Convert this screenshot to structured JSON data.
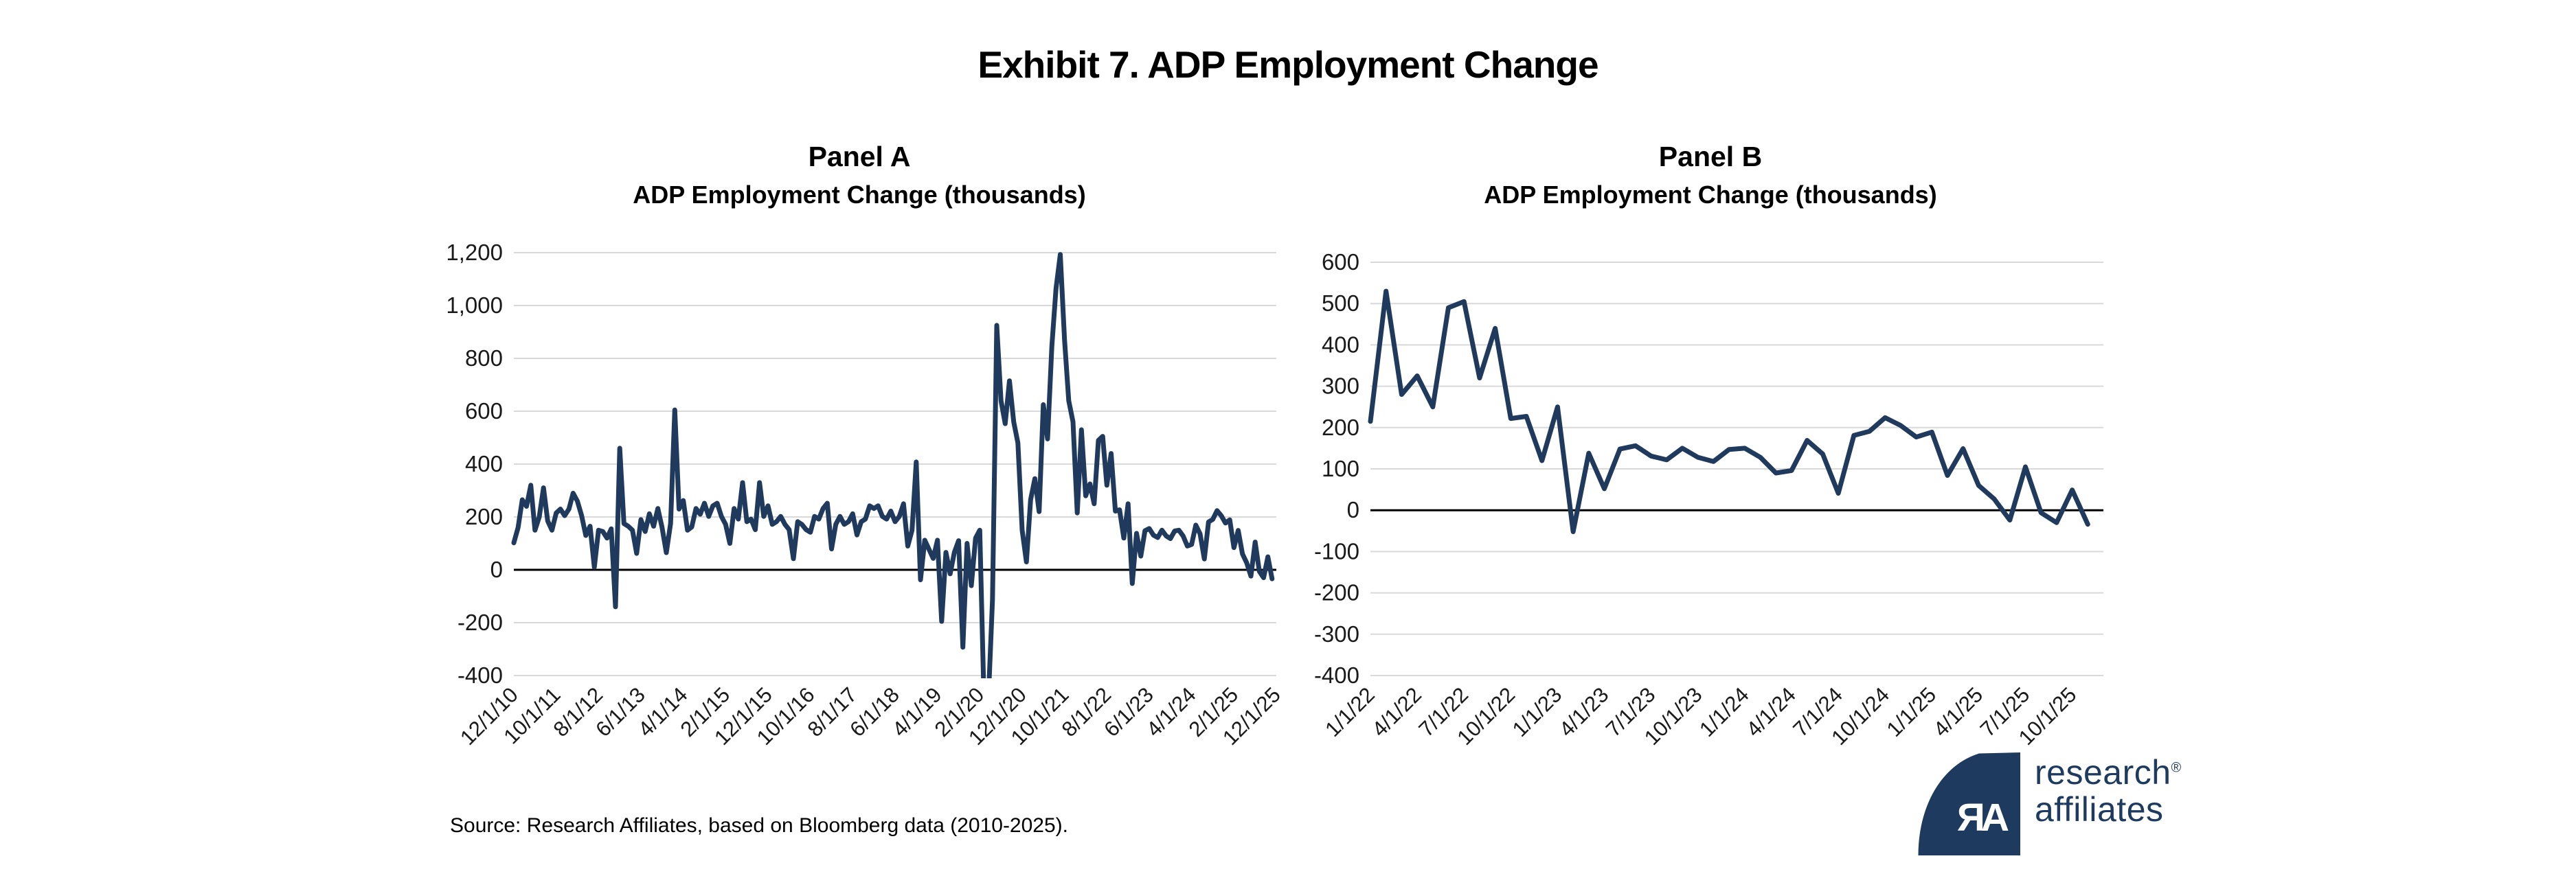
{
  "main_title": "Exhibit 7. ADP Employment Change",
  "chart_data": [
    {
      "type": "line",
      "panel": "Panel A",
      "title": "ADP Employment Change (thousands)",
      "frequency": "monthly",
      "x_start": "12/1/10",
      "x_end": "11/1/25",
      "ylim": [
        -400,
        1200
      ],
      "y_tick_interval": 200,
      "y_tick_labels": [
        "1,200",
        "1,000",
        "800",
        "600",
        "400",
        "200",
        "0",
        "-200",
        "-400"
      ],
      "x_tick_labels": [
        "12/1/10",
        "10/1/11",
        "8/1/12",
        "6/1/13",
        "4/1/14",
        "2/1/15",
        "12/1/15",
        "10/1/16",
        "8/1/17",
        "6/1/18",
        "4/1/19",
        "2/1/20",
        "12/1/20",
        "10/1/21",
        "8/1/22",
        "6/1/23",
        "4/1/24",
        "2/1/25",
        "12/1/25"
      ],
      "x_tick_every_n_months": 10,
      "grid": true,
      "legend": "none",
      "values": [
        102,
        160,
        265,
        240,
        320,
        150,
        200,
        310,
        185,
        150,
        215,
        230,
        205,
        230,
        290,
        260,
        205,
        130,
        165,
        10,
        150,
        145,
        120,
        155,
        -140,
        460,
        175,
        165,
        150,
        62,
        190,
        145,
        212,
        165,
        232,
        160,
        65,
        175,
        605,
        230,
        262,
        150,
        162,
        232,
        210,
        252,
        202,
        242,
        252,
        202,
        172,
        100,
        232,
        192,
        330,
        182,
        192,
        152,
        330,
        202,
        242,
        172,
        182,
        202,
        172,
        152,
        42,
        182,
        172,
        152,
        142,
        202,
        192,
        232,
        252,
        79,
        172,
        202,
        172,
        182,
        212,
        132,
        182,
        192,
        242,
        232,
        242,
        202,
        192,
        222,
        182,
        202,
        250,
        90,
        150,
        408,
        -38,
        112,
        78,
        43,
        112,
        -195,
        66,
        -15,
        66,
        110,
        -293,
        100,
        -60,
        120,
        150,
        -500,
        -500,
        -114,
        925,
        640,
        553,
        715,
        560,
        480,
        150,
        30,
        265,
        345,
        220,
        625,
        495,
        845,
        1065,
        1193,
        870,
        640,
        560,
        215,
        530,
        280,
        325,
        250,
        490,
        505,
        320,
        440,
        222,
        227,
        120,
        250,
        -52,
        138,
        52,
        148,
        156,
        131,
        122,
        150,
        128,
        118,
        147,
        150,
        128,
        90,
        96,
        169,
        136,
        41,
        181,
        191,
        224,
        205,
        177,
        189,
        84,
        149,
        60,
        27,
        -24,
        105,
        -6,
        -30,
        49,
        -34
      ]
    },
    {
      "type": "line",
      "panel": "Panel B",
      "title": "ADP Employment Change (thousands)",
      "frequency": "monthly",
      "x_start": "1/1/22",
      "x_end": "11/1/25",
      "ylim": [
        -400,
        600
      ],
      "y_tick_interval": 100,
      "y_tick_labels": [
        "600",
        "500",
        "400",
        "300",
        "200",
        "100",
        "0",
        "-100",
        "-200",
        "-300",
        "-400"
      ],
      "x_tick_labels": [
        "1/1/22",
        "4/1/22",
        "7/1/22",
        "10/1/22",
        "1/1/23",
        "4/1/23",
        "7/1/23",
        "10/1/23",
        "1/1/24",
        "4/1/24",
        "7/1/24",
        "10/1/24",
        "1/1/25",
        "4/1/25",
        "7/1/25",
        "10/1/25"
      ],
      "x_tick_every_n_months": 3,
      "grid": true,
      "legend": "none",
      "values": [
        215,
        530,
        280,
        325,
        250,
        490,
        505,
        320,
        440,
        222,
        227,
        120,
        250,
        -52,
        138,
        52,
        148,
        156,
        131,
        122,
        150,
        128,
        118,
        147,
        150,
        128,
        90,
        96,
        169,
        136,
        41,
        181,
        191,
        224,
        205,
        177,
        189,
        84,
        149,
        60,
        27,
        -24,
        105,
        -6,
        -30,
        49,
        -34
      ]
    }
  ],
  "source": {
    "text": "Source: Research Affiliates, based on Bloomberg data (2010-2025)."
  },
  "logo": {
    "monogram": "ЯA",
    "line1": "research",
    "registered": "®",
    "line2": "affiliates"
  },
  "colors": {
    "line": "#1f3a5c",
    "gridline": "#d9d9d9",
    "zero_line": "#000000",
    "navy": "#1e3a5e",
    "background": "#ffffff"
  }
}
